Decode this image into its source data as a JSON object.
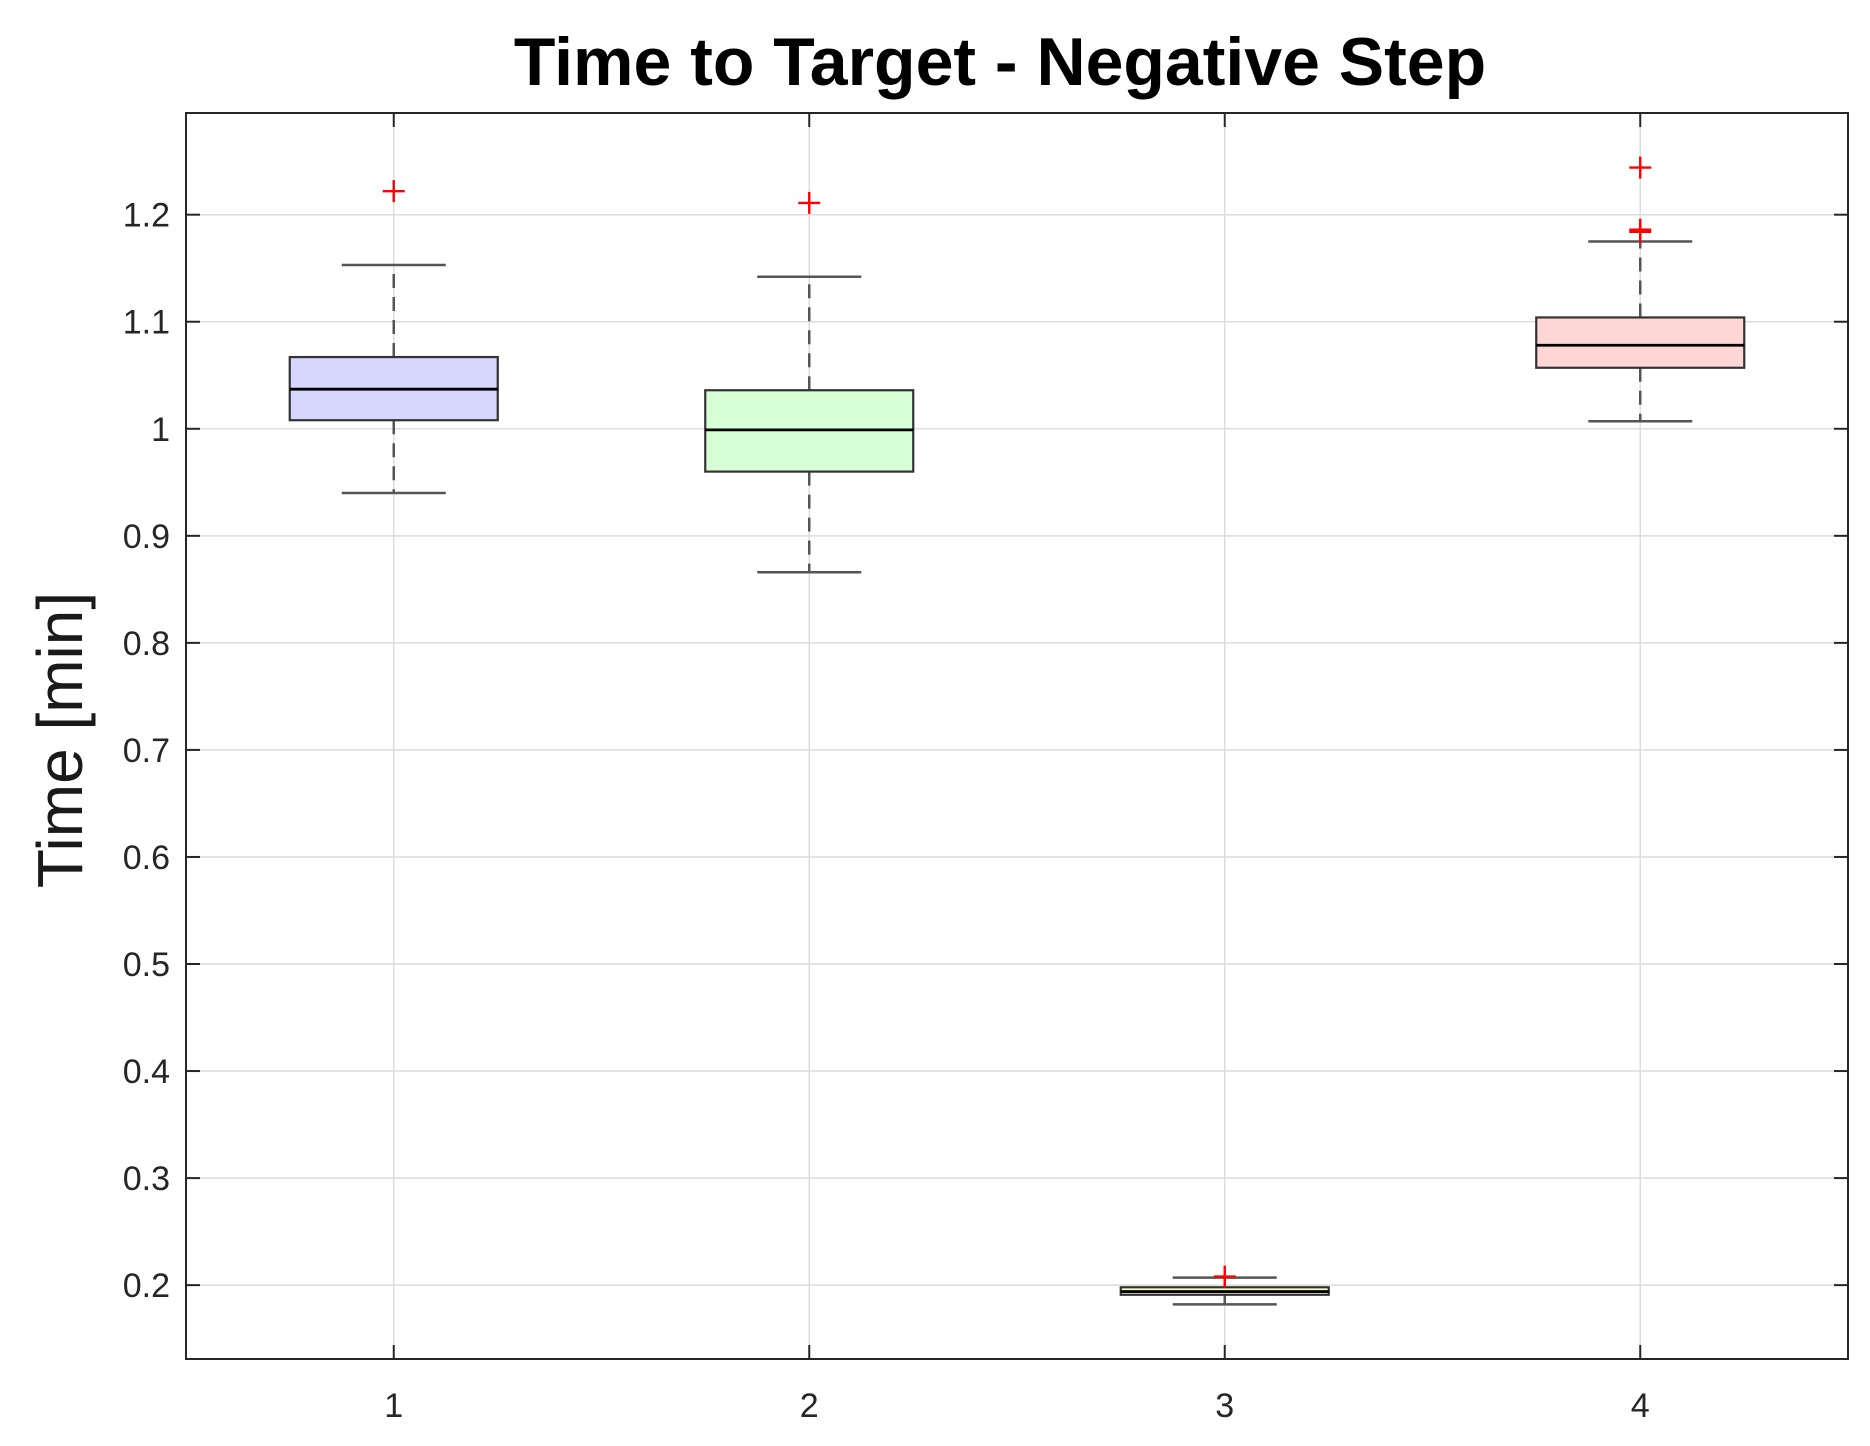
{
  "chart_data": {
    "type": "box",
    "title": "Time to Target - Negative Step",
    "xlabel": "",
    "ylabel": "Time [min]",
    "categories": [
      "1",
      "2",
      "3",
      "4"
    ],
    "ylim": [
      0.131,
      1.295
    ],
    "yticks": [
      0.2,
      0.3,
      0.4,
      0.5,
      0.6,
      0.7,
      0.8,
      0.9,
      1,
      1.1,
      1.2
    ],
    "ytick_labels": [
      "0.2",
      "0.3",
      "0.4",
      "0.5",
      "0.6",
      "0.7",
      "0.8",
      "0.9",
      "1",
      "1.1",
      "1.2"
    ],
    "grid": true,
    "boxes": [
      {
        "category": "1",
        "whisker_low": 0.94,
        "q1": 1.008,
        "median": 1.037,
        "q3": 1.067,
        "whisker_high": 1.153,
        "outliers": [
          1.222
        ],
        "fill": "#d6d6ff"
      },
      {
        "category": "2",
        "whisker_low": 0.866,
        "q1": 0.96,
        "median": 0.999,
        "q3": 1.036,
        "whisker_high": 1.142,
        "outliers": [
          1.211
        ],
        "fill": "#d6ffd6"
      },
      {
        "category": "3",
        "whisker_low": 0.182,
        "q1": 0.191,
        "median": 0.194,
        "q3": 0.198,
        "whisker_high": 0.207,
        "outliers": [
          0.208
        ],
        "fill": "#ffffd0"
      },
      {
        "category": "4",
        "whisker_low": 1.007,
        "q1": 1.057,
        "median": 1.078,
        "q3": 1.104,
        "whisker_high": 1.175,
        "outliers": [
          1.184,
          1.186,
          1.244
        ],
        "fill": "#ffd6d6"
      }
    ],
    "colors": {
      "outlier": "#ff0000",
      "median": "#000000",
      "whisker": "#555555",
      "grid": "#dcdcdc"
    }
  }
}
